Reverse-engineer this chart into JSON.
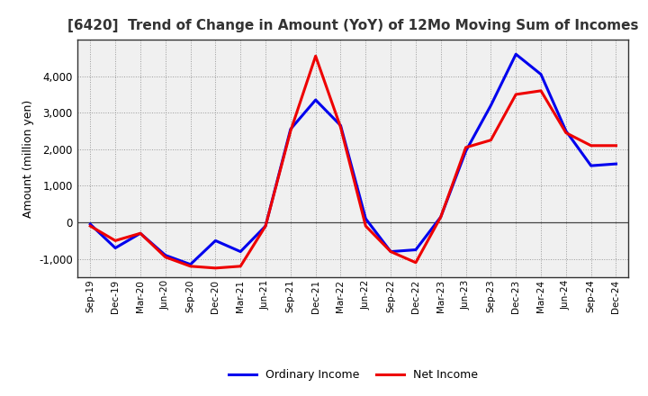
{
  "title": "[6420]  Trend of Change in Amount (YoY) of 12Mo Moving Sum of Incomes",
  "ylabel": "Amount (million yen)",
  "x_labels": [
    "Sep-19",
    "Dec-19",
    "Mar-20",
    "Jun-20",
    "Sep-20",
    "Dec-20",
    "Mar-21",
    "Jun-21",
    "Sep-21",
    "Dec-21",
    "Mar-22",
    "Jun-22",
    "Sep-22",
    "Dec-22",
    "Mar-23",
    "Jun-23",
    "Sep-23",
    "Dec-23",
    "Mar-24",
    "Jun-24",
    "Sep-24",
    "Dec-24"
  ],
  "ordinary_income": [
    -50,
    -700,
    -300,
    -900,
    -1150,
    -500,
    -800,
    -100,
    2550,
    3350,
    2650,
    100,
    -800,
    -750,
    150,
    1950,
    3200,
    4600,
    4050,
    2500,
    1550,
    1600
  ],
  "net_income": [
    -100,
    -500,
    -300,
    -950,
    -1200,
    -1250,
    -1200,
    -100,
    2500,
    4550,
    2600,
    -100,
    -800,
    -1100,
    150,
    2050,
    2250,
    3500,
    3600,
    2450,
    2100,
    2100
  ],
  "ordinary_income_color": "#0000ee",
  "net_income_color": "#ee0000",
  "background_color": "#ffffff",
  "plot_bg_color": "#f0f0f0",
  "grid_color": "#999999",
  "ylim": [
    -1500,
    5000
  ],
  "yticks": [
    -1000,
    0,
    1000,
    2000,
    3000,
    4000
  ],
  "legend_labels": [
    "Ordinary Income",
    "Net Income"
  ],
  "line_width": 2.2
}
